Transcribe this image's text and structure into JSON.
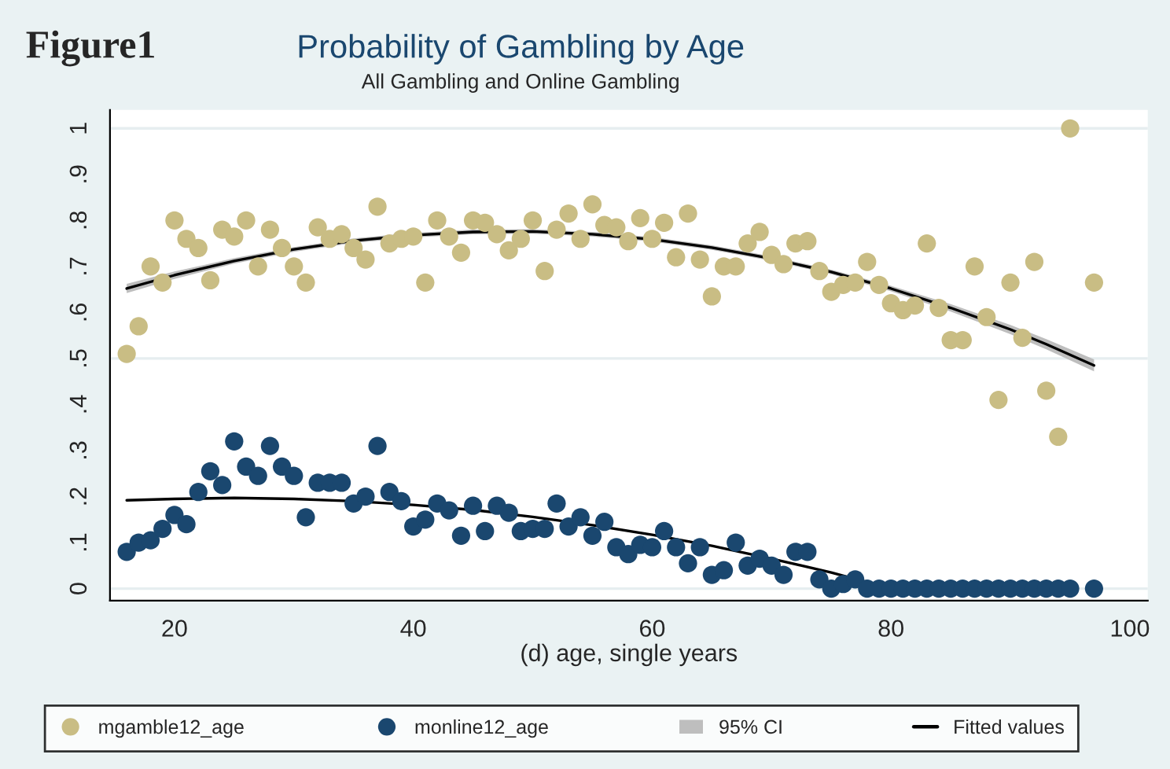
{
  "chart_data": {
    "type": "scatter",
    "title": "Probability of Gambling by Age",
    "subtitle": "All Gambling and Online Gambling",
    "xlabel": "(d) age, single years",
    "annotations": [
      "Figure1",
      "95% CI"
    ],
    "x": [
      16,
      17,
      18,
      19,
      20,
      21,
      22,
      23,
      24,
      25,
      26,
      27,
      28,
      29,
      30,
      31,
      32,
      33,
      34,
      35,
      36,
      37,
      38,
      39,
      40,
      41,
      42,
      43,
      44,
      45,
      46,
      47,
      48,
      49,
      50,
      51,
      52,
      53,
      54,
      55,
      56,
      57,
      58,
      59,
      60,
      61,
      62,
      63,
      64,
      65,
      66,
      67,
      68,
      69,
      70,
      71,
      72,
      73,
      74,
      75,
      76,
      77,
      78,
      79,
      80,
      81,
      82,
      83,
      84,
      85,
      86,
      87,
      88,
      89,
      90,
      91,
      92,
      93,
      94,
      95,
      96,
      97
    ],
    "series": [
      {
        "name": "mgamble12_age",
        "marker": "circle",
        "color": "#c9bd84",
        "values": [
          0.51,
          0.57,
          0.7,
          0.665,
          0.8,
          0.76,
          0.74,
          0.67,
          0.78,
          0.765,
          0.8,
          0.7,
          0.78,
          0.74,
          0.7,
          0.665,
          0.785,
          0.76,
          0.77,
          0.74,
          0.715,
          0.83,
          0.75,
          0.76,
          0.765,
          0.665,
          0.8,
          0.765,
          0.73,
          0.8,
          0.795,
          0.77,
          0.735,
          0.76,
          0.8,
          0.69,
          0.78,
          0.815,
          0.76,
          0.835,
          0.79,
          0.785,
          0.755,
          0.805,
          0.76,
          0.795,
          0.72,
          0.815,
          0.715,
          0.635,
          0.7,
          0.7,
          0.75,
          0.775,
          0.725,
          0.705,
          0.75,
          0.755,
          0.69,
          0.645,
          0.66,
          0.665,
          0.71,
          0.66,
          0.62,
          0.605,
          0.615,
          0.75,
          0.61,
          0.54,
          0.54,
          0.7,
          0.59,
          0.41,
          0.665,
          0.545,
          0.71,
          0.43,
          0.33,
          1.0,
          null,
          0.665
        ]
      },
      {
        "name": "monline12_age",
        "marker": "circle",
        "color": "#1a476f",
        "values": [
          0.08,
          0.1,
          0.105,
          0.13,
          0.16,
          0.14,
          0.21,
          0.255,
          0.225,
          0.32,
          0.265,
          0.245,
          0.31,
          0.265,
          0.245,
          0.155,
          0.23,
          0.23,
          0.23,
          0.185,
          0.2,
          0.31,
          0.21,
          0.19,
          0.135,
          0.15,
          0.185,
          0.17,
          0.115,
          0.18,
          0.125,
          0.18,
          0.165,
          0.125,
          0.13,
          0.13,
          0.185,
          0.135,
          0.155,
          0.115,
          0.145,
          0.09,
          0.075,
          0.095,
          0.09,
          0.125,
          0.09,
          0.055,
          0.09,
          0.03,
          0.04,
          0.1,
          0.05,
          0.065,
          0.05,
          0.03,
          0.08,
          0.08,
          0.02,
          0,
          0.01,
          0.02,
          0,
          0,
          0,
          0,
          0,
          0,
          0,
          0,
          0,
          0,
          0,
          0,
          0,
          0,
          0,
          0,
          0,
          0,
          null,
          0
        ]
      },
      {
        "name": "Fitted values",
        "type": "line",
        "color": "#000000",
        "x": [
          16,
          20,
          25,
          30,
          35,
          40,
          45,
          50,
          55,
          60,
          65,
          70,
          75,
          80,
          85,
          90,
          93,
          97
        ],
        "values": [
          0.652,
          0.681,
          0.712,
          0.737,
          0.756,
          0.768,
          0.775,
          0.776,
          0.77,
          0.759,
          0.741,
          0.717,
          0.688,
          0.652,
          0.61,
          0.563,
          0.531,
          0.485
        ],
        "lower": [
          0.642,
          0.673,
          0.706,
          0.732,
          0.751,
          0.763,
          0.77,
          0.771,
          0.765,
          0.754,
          0.736,
          0.712,
          0.683,
          0.646,
          0.602,
          0.553,
          0.52,
          0.472
        ],
        "upper": [
          0.662,
          0.689,
          0.718,
          0.742,
          0.761,
          0.773,
          0.78,
          0.781,
          0.775,
          0.764,
          0.746,
          0.722,
          0.693,
          0.658,
          0.618,
          0.573,
          0.542,
          0.498
        ]
      },
      {
        "type": "line",
        "color": "#000000",
        "x": [
          16,
          20,
          25,
          30,
          35,
          40,
          45,
          50,
          55,
          60,
          65,
          70,
          75,
          80
        ],
        "values": [
          0.192,
          0.195,
          0.197,
          0.195,
          0.19,
          0.182,
          0.171,
          0.156,
          0.138,
          0.117,
          0.093,
          0.065,
          0.035,
          0.0
        ]
      }
    ],
    "xlim": [
      14.6,
      101.5
    ],
    "ylim": [
      -0.026,
      1.04
    ],
    "xticks": [
      20,
      40,
      60,
      80,
      100
    ],
    "yticks": [
      0,
      {
        "value": 0.1,
        "label": ".1"
      },
      {
        "value": 0.2,
        "label": ".2"
      },
      {
        "value": 0.3,
        "label": ".3"
      },
      {
        "value": 0.4,
        "label": ".4"
      },
      {
        "value": 0.5,
        "label": ".5"
      },
      {
        "value": 0.6,
        "label": ".6"
      },
      {
        "value": 0.7,
        "label": ".7"
      },
      {
        "value": 0.8,
        "label": ".8"
      },
      {
        "value": 0.9,
        "label": ".9"
      },
      1
    ],
    "ref_lines": [
      {
        "axis": "y",
        "value": 0,
        "color": "#e6eef0"
      },
      {
        "axis": "y",
        "value": 0.5,
        "color": "#e6eef0"
      },
      {
        "axis": "y",
        "value": 1,
        "color": "#e6eef0"
      }
    ],
    "grid": false,
    "legend": "bottom"
  }
}
